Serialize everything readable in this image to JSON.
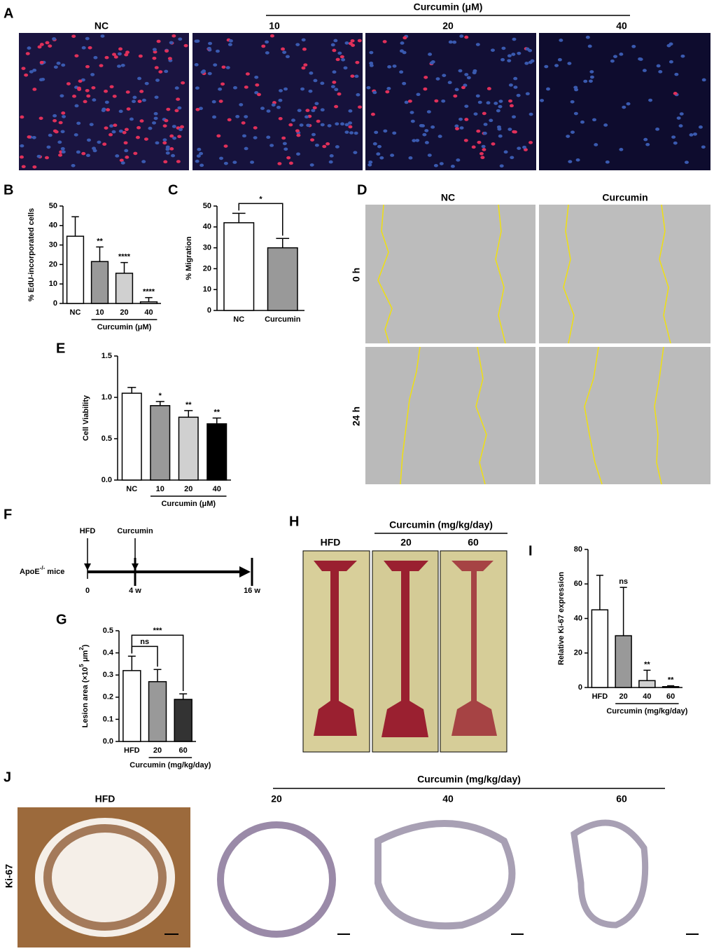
{
  "panel_letters": [
    "A",
    "B",
    "C",
    "D",
    "E",
    "F",
    "G",
    "H",
    "I",
    "J"
  ],
  "panel_a": {
    "group_label": "Curcumin (μM)",
    "labels": [
      "NC",
      "10",
      "20",
      "40"
    ]
  },
  "panel_d": {
    "columns": [
      "NC",
      "Curcumin"
    ],
    "rows": [
      "0 h",
      "24 h"
    ]
  },
  "panel_f": {
    "subject": "ApoE",
    "subject_sup": "-/-",
    "subject_rest": "mice",
    "events": [
      "HFD",
      "Curcumin"
    ],
    "timepoints": [
      "0",
      "4 w",
      "16 w"
    ]
  },
  "panel_h": {
    "group_label": "Curcumin (mg/kg/day)",
    "labels": [
      "HFD",
      "20",
      "60"
    ]
  },
  "panel_j": {
    "group_label": "Curcumin (mg/kg/day)",
    "labels": [
      "HFD",
      "20",
      "40",
      "60"
    ],
    "row_label": "Ki-67"
  },
  "chart_data": [
    {
      "type": "bar",
      "ylabel": "% EdU-incorporated cells",
      "categories": [
        "NC",
        "10",
        "20",
        "40"
      ],
      "group_label": "Curcumin (μM)",
      "values": [
        34.5,
        21.5,
        15.5,
        0.8
      ],
      "errors": [
        10,
        7.5,
        5.5,
        2.2
      ],
      "annotations": [
        null,
        "**",
        "****",
        "****"
      ],
      "colors": [
        "#ffffff",
        "#999999",
        "#d0d0d0",
        "#ffffff"
      ],
      "ylim": [
        0,
        50
      ],
      "yticks": [
        0,
        10,
        20,
        30,
        40,
        50
      ]
    },
    {
      "type": "bar",
      "ylabel": "% Migration",
      "categories": [
        "NC",
        "Curcumin"
      ],
      "values": [
        42,
        30
      ],
      "errors": [
        4.5,
        4.5
      ],
      "colors": [
        "#ffffff",
        "#999999"
      ],
      "ylim": [
        0,
        50
      ],
      "yticks": [
        0,
        10,
        20,
        30,
        40,
        50
      ],
      "comparisons": [
        {
          "pair": [
            0,
            1
          ],
          "label": "*"
        }
      ]
    },
    {
      "type": "bar",
      "ylabel": "Cell Viability",
      "categories": [
        "NC",
        "10",
        "20",
        "40"
      ],
      "group_label": "Curcumin (μM)",
      "values": [
        1.05,
        0.9,
        0.76,
        0.68
      ],
      "errors": [
        0.07,
        0.05,
        0.08,
        0.07
      ],
      "annotations": [
        null,
        "*",
        "**",
        "**"
      ],
      "colors": [
        "#ffffff",
        "#999999",
        "#d0d0d0",
        "#000000"
      ],
      "ylim": [
        0,
        1.5
      ],
      "yticks": [
        {
          "value": 0,
          "label": "0.0"
        },
        0.5,
        {
          "value": 1,
          "label": "1.0"
        },
        1.5
      ]
    },
    {
      "type": "bar",
      "ylabel_parts": [
        "Lesion area (×10",
        "5",
        " μm",
        "2",
        ")"
      ],
      "categories": [
        "HFD",
        "20",
        "60"
      ],
      "group_label": "Curcumin (mg/kg/day)",
      "values": [
        0.32,
        0.27,
        0.19
      ],
      "errors": [
        0.065,
        0.055,
        0.025
      ],
      "colors": [
        "#ffffff",
        "#999999",
        "#333333"
      ],
      "ylim": [
        0,
        0.5
      ],
      "yticks": [
        {
          "value": 0,
          "label": "0.0"
        },
        0.1,
        0.2,
        0.3,
        0.4,
        0.5
      ],
      "comparisons": [
        {
          "pair": [
            0,
            1
          ],
          "label": "ns"
        },
        {
          "pair": [
            0,
            2
          ],
          "label": "***"
        }
      ]
    },
    {
      "type": "bar",
      "ylabel": "Relative Ki-67 expression",
      "categories": [
        "HFD",
        "20",
        "40",
        "60"
      ],
      "group_label": "Curcumin (mg/kg/day)",
      "values": [
        45,
        30,
        4,
        0.5
      ],
      "errors": [
        20,
        28,
        6,
        0.5
      ],
      "annotations": [
        null,
        "ns",
        "**",
        "**"
      ],
      "colors": [
        "#ffffff",
        "#999999",
        "#d0d0d0",
        "#ffffff"
      ],
      "ylim": [
        0,
        80
      ],
      "yticks": [
        0,
        20,
        40,
        60,
        80
      ]
    }
  ]
}
